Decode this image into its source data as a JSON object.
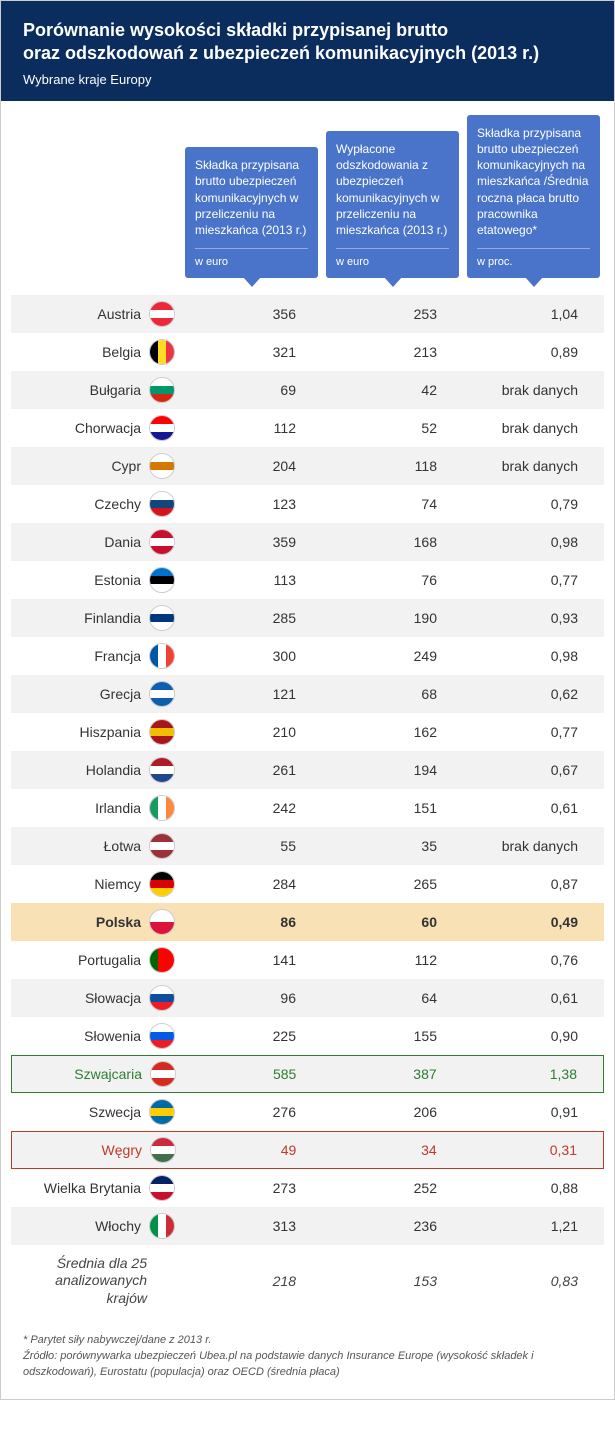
{
  "header": {
    "title_line1": "Porównanie wysokości składki przypisanej brutto",
    "title_line2": "oraz odszkodowań z ubezpieczeń komunikacyjnych (2013 r.)",
    "subtitle": "Wybrane kraje Europy"
  },
  "columns": {
    "col1": {
      "text": "Składka przypisana brutto ubezpieczeń komunikacyjnych w przeliczeniu na mieszkańca (2013 r.)",
      "unit": "w euro"
    },
    "col2": {
      "text": "Wypłacone odszkodowania z ubezpieczeń komunikacyjnych w przeliczeniu na mieszkańca (2013 r.)",
      "unit": "w euro"
    },
    "col3": {
      "text": "Składka przypisana brutto ubezpieczeń komunikacyjnych na mieszkańca /Średnia roczna płaca brutto pracownika etatowego*",
      "unit": "w proc."
    }
  },
  "rows": [
    {
      "country": "Austria",
      "flag": "at",
      "v1": "356",
      "v2": "253",
      "v3": "1,04"
    },
    {
      "country": "Belgia",
      "flag": "be",
      "v1": "321",
      "v2": "213",
      "v3": "0,89"
    },
    {
      "country": "Bułgaria",
      "flag": "bg",
      "v1": "69",
      "v2": "42",
      "v3": "brak danych"
    },
    {
      "country": "Chorwacja",
      "flag": "hr",
      "v1": "112",
      "v2": "52",
      "v3": "brak danych"
    },
    {
      "country": "Cypr",
      "flag": "cy",
      "v1": "204",
      "v2": "118",
      "v3": "brak danych"
    },
    {
      "country": "Czechy",
      "flag": "cz",
      "v1": "123",
      "v2": "74",
      "v3": "0,79"
    },
    {
      "country": "Dania",
      "flag": "dk",
      "v1": "359",
      "v2": "168",
      "v3": "0,98"
    },
    {
      "country": "Estonia",
      "flag": "ee",
      "v1": "113",
      "v2": "76",
      "v3": "0,77"
    },
    {
      "country": "Finlandia",
      "flag": "fi",
      "v1": "285",
      "v2": "190",
      "v3": "0,93"
    },
    {
      "country": "Francja",
      "flag": "fr",
      "v1": "300",
      "v2": "249",
      "v3": "0,98"
    },
    {
      "country": "Grecja",
      "flag": "gr",
      "v1": "121",
      "v2": "68",
      "v3": "0,62"
    },
    {
      "country": "Hiszpania",
      "flag": "es",
      "v1": "210",
      "v2": "162",
      "v3": "0,77"
    },
    {
      "country": "Holandia",
      "flag": "nl",
      "v1": "261",
      "v2": "194",
      "v3": "0,67"
    },
    {
      "country": "Irlandia",
      "flag": "ie",
      "v1": "242",
      "v2": "151",
      "v3": "0,61"
    },
    {
      "country": "Łotwa",
      "flag": "lv",
      "v1": "55",
      "v2": "35",
      "v3": "brak danych"
    },
    {
      "country": "Niemcy",
      "flag": "de",
      "v1": "284",
      "v2": "265",
      "v3": "0,87"
    },
    {
      "country": "Polska",
      "flag": "pl",
      "v1": "86",
      "v2": "60",
      "v3": "0,49",
      "highlight": "yellow"
    },
    {
      "country": "Portugalia",
      "flag": "pt",
      "v1": "141",
      "v2": "112",
      "v3": "0,76"
    },
    {
      "country": "Słowacja",
      "flag": "sk",
      "v1": "96",
      "v2": "64",
      "v3": "0,61"
    },
    {
      "country": "Słowenia",
      "flag": "si",
      "v1": "225",
      "v2": "155",
      "v3": "0,90"
    },
    {
      "country": "Szwajcaria",
      "flag": "ch",
      "v1": "585",
      "v2": "387",
      "v3": "1,38",
      "highlight": "green"
    },
    {
      "country": "Szwecja",
      "flag": "se",
      "v1": "276",
      "v2": "206",
      "v3": "0,91"
    },
    {
      "country": "Węgry",
      "flag": "hu",
      "v1": "49",
      "v2": "34",
      "v3": "0,31",
      "highlight": "red"
    },
    {
      "country": "Wielka Brytania",
      "flag": "gb",
      "v1": "273",
      "v2": "252",
      "v3": "0,88"
    },
    {
      "country": "Włochy",
      "flag": "it",
      "v1": "313",
      "v2": "236",
      "v3": "1,21"
    }
  ],
  "average": {
    "label": "Średnia dla 25 analizowanych krajów",
    "v1": "218",
    "v2": "153",
    "v3": "0,83"
  },
  "footer": {
    "note": "* Parytet siły nabywczej/dane z 2013 r.",
    "source": "Źródło: porównywarka ubezpieczeń Ubea.pl na podstawie danych Insurance Europe (wysokość składek i odszkodowań), Eurostatu (populacja) oraz OECD (średnia płaca)"
  },
  "flag_colors": {
    "at": {
      "dir": "h",
      "stripes": [
        "#ed2939",
        "#ffffff",
        "#ed2939"
      ]
    },
    "be": {
      "dir": "v",
      "stripes": [
        "#000000",
        "#fdda24",
        "#ef3340"
      ]
    },
    "bg": {
      "dir": "h",
      "stripes": [
        "#ffffff",
        "#00966e",
        "#d62612"
      ]
    },
    "hr": {
      "dir": "h",
      "stripes": [
        "#ff0000",
        "#ffffff",
        "#171796"
      ]
    },
    "cy": {
      "dir": "h",
      "stripes": [
        "#ffffff",
        "#d57800",
        "#ffffff"
      ]
    },
    "cz": {
      "dir": "h",
      "stripes": [
        "#ffffff",
        "#11457e",
        "#d7141a"
      ]
    },
    "dk": {
      "dir": "h",
      "stripes": [
        "#c8102e",
        "#ffffff",
        "#c8102e"
      ]
    },
    "ee": {
      "dir": "h",
      "stripes": [
        "#0072ce",
        "#000000",
        "#ffffff"
      ]
    },
    "fi": {
      "dir": "h",
      "stripes": [
        "#ffffff",
        "#003580",
        "#ffffff"
      ]
    },
    "fr": {
      "dir": "v",
      "stripes": [
        "#0055a4",
        "#ffffff",
        "#ef4135"
      ]
    },
    "gr": {
      "dir": "h",
      "stripes": [
        "#0d5eaf",
        "#ffffff",
        "#0d5eaf"
      ]
    },
    "es": {
      "dir": "h",
      "stripes": [
        "#aa151b",
        "#f1bf00",
        "#aa151b"
      ]
    },
    "nl": {
      "dir": "h",
      "stripes": [
        "#ae1c28",
        "#ffffff",
        "#21468b"
      ]
    },
    "ie": {
      "dir": "v",
      "stripes": [
        "#169b62",
        "#ffffff",
        "#ff883e"
      ]
    },
    "lv": {
      "dir": "h",
      "stripes": [
        "#9e3039",
        "#ffffff",
        "#9e3039"
      ]
    },
    "de": {
      "dir": "h",
      "stripes": [
        "#000000",
        "#dd0000",
        "#ffce00"
      ]
    },
    "pl": {
      "dir": "h",
      "stripes": [
        "#ffffff",
        "#dc143c"
      ]
    },
    "pt": {
      "dir": "v",
      "stripes": [
        "#006600",
        "#ff0000",
        "#ff0000"
      ]
    },
    "sk": {
      "dir": "h",
      "stripes": [
        "#ffffff",
        "#0b4ea2",
        "#ee1c25"
      ]
    },
    "si": {
      "dir": "h",
      "stripes": [
        "#ffffff",
        "#005ce5",
        "#ed1c24"
      ]
    },
    "ch": {
      "dir": "h",
      "stripes": [
        "#d52b1e",
        "#ffffff",
        "#d52b1e"
      ]
    },
    "se": {
      "dir": "h",
      "stripes": [
        "#006aa7",
        "#fecc00",
        "#006aa7"
      ]
    },
    "hu": {
      "dir": "h",
      "stripes": [
        "#cd2a3e",
        "#ffffff",
        "#436f4d"
      ]
    },
    "gb": {
      "dir": "h",
      "stripes": [
        "#012169",
        "#ffffff",
        "#c8102e"
      ]
    },
    "it": {
      "dir": "v",
      "stripes": [
        "#009246",
        "#ffffff",
        "#ce2b37"
      ]
    }
  },
  "style": {
    "header_bg": "#0a2d5e",
    "colhead_bg": "#4a74c9",
    "row_odd_bg": "#f2f2f2",
    "row_even_bg": "#ffffff",
    "highlight_yellow_bg": "#f7e1b5",
    "highlight_green": "#2e7d32",
    "highlight_red": "#c0392b"
  }
}
